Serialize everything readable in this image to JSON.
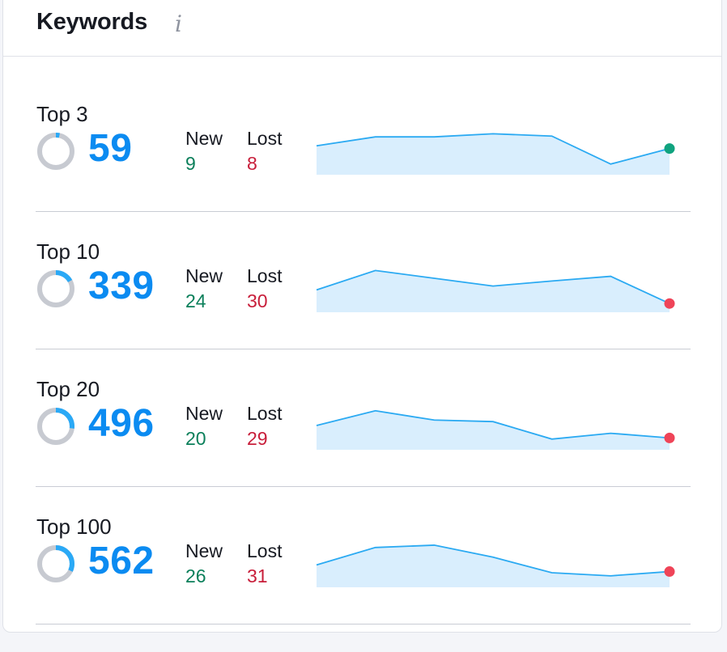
{
  "widget": {
    "title": "Keywords",
    "info_icon": "i"
  },
  "labels": {
    "new": "New",
    "lost": "Lost"
  },
  "colors": {
    "accent": "#0b8bf1",
    "donut_track": "#c7cad1",
    "positive": "#0a7f5a",
    "negative": "#c81e3a",
    "spark_line": "#2baaf2",
    "spark_fill": "#d9eefd",
    "dot_up": "#10a37f",
    "dot_down": "#ef4458"
  },
  "rows": [
    {
      "label": "Top 3",
      "count": "59",
      "share": 0.035,
      "new": "9",
      "lost": "8",
      "trend": "up",
      "spark": [
        0.62,
        0.85,
        0.85,
        0.93,
        0.87,
        0.15,
        0.55
      ]
    },
    {
      "label": "Top 10",
      "count": "339",
      "share": 0.17,
      "new": "24",
      "lost": "30",
      "trend": "down",
      "spark": [
        0.45,
        0.95,
        0.75,
        0.55,
        0.68,
        0.8,
        0.1
      ]
    },
    {
      "label": "Top 20",
      "count": "496",
      "share": 0.27,
      "new": "20",
      "lost": "29",
      "trend": "down",
      "spark": [
        0.5,
        0.88,
        0.64,
        0.6,
        0.15,
        0.3,
        0.18
      ]
    },
    {
      "label": "Top 100",
      "count": "562",
      "share": 0.32,
      "new": "26",
      "lost": "31",
      "trend": "down",
      "spark": [
        0.45,
        0.9,
        0.96,
        0.65,
        0.25,
        0.17,
        0.28
      ]
    }
  ]
}
